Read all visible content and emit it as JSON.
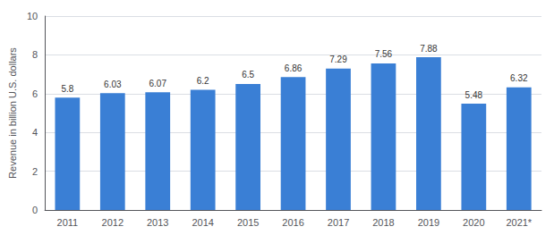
{
  "chart_data": {
    "type": "bar",
    "categories": [
      "2011",
      "2012",
      "2013",
      "2014",
      "2015",
      "2016",
      "2017",
      "2018",
      "2019",
      "2020",
      "2021*"
    ],
    "values": [
      5.8,
      6.03,
      6.07,
      6.2,
      6.5,
      6.86,
      7.29,
      7.56,
      7.88,
      5.48,
      6.32
    ],
    "color": "#3a7fd5",
    "ylabel": "Revenue in billion U.S. dollars",
    "ylim": [
      0,
      10
    ],
    "yticks": [
      0,
      2,
      4,
      6,
      8,
      10
    ],
    "grid": true,
    "data_labels": true
  }
}
